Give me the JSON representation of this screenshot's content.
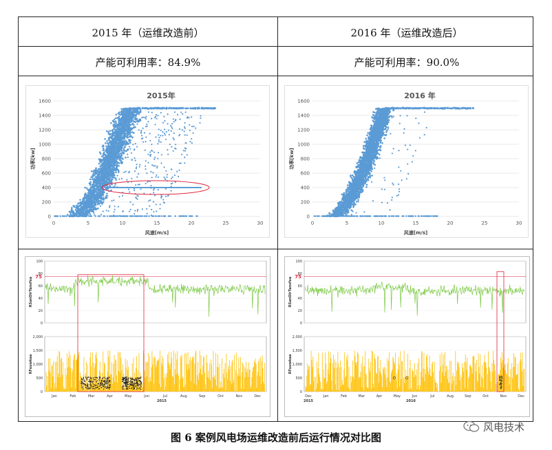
{
  "table": {
    "headers": [
      "2015 年（运维改造前）",
      "2016 年（运维改造后）"
    ],
    "availability": [
      "产能可利用率：84.9%",
      "产能可利用率：90.0%"
    ]
  },
  "scatter_axes": {
    "y_ticks": [
      "0",
      "200",
      "400",
      "600",
      "800",
      "1000",
      "1200",
      "1400",
      "1600"
    ],
    "x_ticks": [
      "0",
      "5",
      "10",
      "15",
      "20",
      "25",
      "30"
    ],
    "ylabel": "功率[kw]",
    "xlabel": "风速[m/s]"
  },
  "ts_axes": {
    "top_ticks": [
      "0",
      "20",
      "40",
      "60",
      "80",
      "100"
    ],
    "bottom_ticks": [
      "0",
      "500",
      "1,000",
      "1,500",
      "2,000"
    ],
    "top_label": "RSanOlrTansfea",
    "bottom_label": "RFuuwkaa",
    "marker": "75",
    "months_2015": [
      "Jan",
      "Feb",
      "Mar",
      "Apr",
      "May",
      "Jun",
      "Jul",
      "Aug",
      "Sep",
      "Oct",
      "Nov",
      "Dec"
    ],
    "year_2015": "2015",
    "months_2016": [
      "Dec",
      "Jan",
      "Feb",
      "Mar",
      "Apr",
      "May",
      "Jun",
      "Jul",
      "Aug",
      "Sep",
      "Oct",
      "Nov",
      "Dec"
    ],
    "year_2016_start": "2015",
    "year_2016": "2016"
  },
  "caption": "图 6 案例风电场运维改造前后运行情况对比图",
  "watermark": "风电技术",
  "colors": {
    "scatter": "#5b9bd5",
    "green": "#7ac943",
    "yellow": "#ffc000",
    "highlight": "#e0233a"
  },
  "chart_data": [
    {
      "type": "scatter",
      "title": "2015年",
      "xlabel": "风速[m/s]",
      "ylabel": "功率[kw]",
      "xlim": [
        0,
        30
      ],
      "ylim": [
        0,
        1600
      ],
      "grid": true,
      "band": {
        "x_start": 3,
        "x_rated": 11,
        "power_max": 1500,
        "spread": 3
      },
      "curtailment_line": {
        "x": [
          7.5,
          21.5
        ],
        "y": 400
      },
      "highlight": "ellipse around curtailment line"
    },
    {
      "type": "scatter",
      "title": "2016 年",
      "xlabel": "风速[m/s]",
      "ylabel": "功率[kw]",
      "xlim": [
        0,
        30
      ],
      "ylim": [
        0,
        1600
      ],
      "grid": true,
      "band": {
        "x_start": 3,
        "x_rated": 10.5,
        "power_max": 1500,
        "spread": 2.2
      }
    },
    {
      "type": "line",
      "panel": "timeseries-2015",
      "top_ylim": [
        0,
        100
      ],
      "bottom_ylim": [
        0,
        2000
      ],
      "marker_line": 75,
      "green_level_mean": 55,
      "yellow_max": 1500,
      "highlight": "rectangle Mar–Jun"
    },
    {
      "type": "line",
      "panel": "timeseries-2016",
      "top_ylim": [
        0,
        100
      ],
      "bottom_ylim": [
        0,
        2000
      ],
      "marker_line": 75,
      "green_level_mean": 52,
      "yellow_max": 1500,
      "highlight": "rectangle Oct"
    }
  ]
}
